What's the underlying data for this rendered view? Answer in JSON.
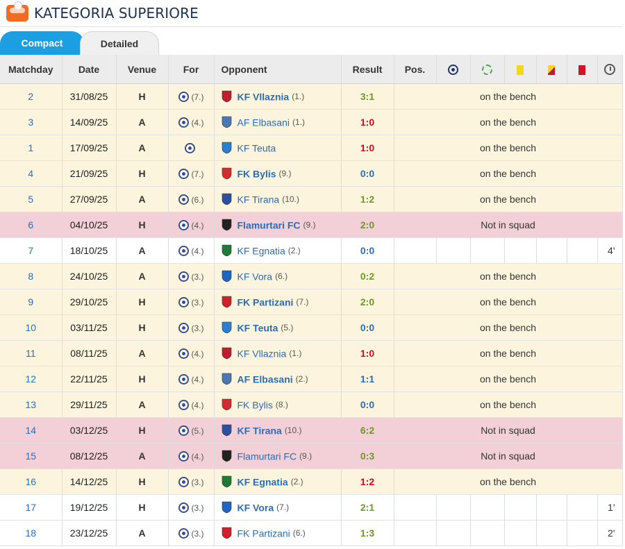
{
  "header": {
    "title": "KATEGORIA SUPERIORE"
  },
  "tabs": [
    {
      "label": "Compact"
    },
    {
      "label": "Detailed"
    }
  ],
  "columns": {
    "matchday": "Matchday",
    "date": "Date",
    "venue": "Venue",
    "for": "For",
    "opponent": "Opponent",
    "result": "Result",
    "pos": "Pos."
  },
  "colors": {
    "bench_row": "#fcf4dc",
    "absent_row": "#f3d0d7",
    "win": "#6b9a24",
    "draw": "#2a6db5",
    "loss": "#c60c1f",
    "tab_active": "#1b9ee2"
  },
  "rows": [
    {
      "matchday": "2",
      "date": "31/08/25",
      "venue": "H",
      "for_pos": "(7.)",
      "opponent": "KF Vllaznia",
      "opp_pos": "(1.)",
      "result": "3:1",
      "result_type": "win",
      "note": "on the bench",
      "state": "bench",
      "bold": true
    },
    {
      "matchday": "3",
      "date": "14/09/25",
      "venue": "A",
      "for_pos": "(4.)",
      "opponent": "AF Elbasani",
      "opp_pos": "(1.)",
      "result": "1:0",
      "result_type": "loss",
      "note": "on the bench",
      "state": "bench",
      "bold": false
    },
    {
      "matchday": "1",
      "date": "17/09/25",
      "venue": "A",
      "for_pos": "",
      "opponent": "KF Teuta",
      "opp_pos": "",
      "result": "1:0",
      "result_type": "loss",
      "note": "on the bench",
      "state": "bench",
      "bold": false
    },
    {
      "matchday": "4",
      "date": "21/09/25",
      "venue": "H",
      "for_pos": "(7.)",
      "opponent": "FK Bylis",
      "opp_pos": "(9.)",
      "result": "0:0",
      "result_type": "draw",
      "note": "on the bench",
      "state": "bench",
      "bold": true
    },
    {
      "matchday": "5",
      "date": "27/09/25",
      "venue": "A",
      "for_pos": "(6.)",
      "opponent": "KF Tirana",
      "opp_pos": "(10.)",
      "result": "1:2",
      "result_type": "win",
      "note": "on the bench",
      "state": "bench",
      "bold": false
    },
    {
      "matchday": "6",
      "date": "04/10/25",
      "venue": "H",
      "for_pos": "(4.)",
      "opponent": "Flamurtari FC",
      "opp_pos": "(9.)",
      "result": "2:0",
      "result_type": "win",
      "note": "Not in squad",
      "state": "absent",
      "bold": true
    },
    {
      "matchday": "7",
      "date": "18/10/25",
      "venue": "A",
      "for_pos": "(4.)",
      "opponent": "KF Egnatia",
      "opp_pos": "(2.)",
      "result": "0:0",
      "result_type": "draw",
      "note": "",
      "state": "played",
      "bold": false,
      "minutes": "4'"
    },
    {
      "matchday": "8",
      "date": "24/10/25",
      "venue": "A",
      "for_pos": "(3.)",
      "opponent": "KF Vora",
      "opp_pos": "(6.)",
      "result": "0:2",
      "result_type": "win",
      "note": "on the bench",
      "state": "bench",
      "bold": false
    },
    {
      "matchday": "9",
      "date": "29/10/25",
      "venue": "H",
      "for_pos": "(3.)",
      "opponent": "FK Partizani",
      "opp_pos": "(7.)",
      "result": "2:0",
      "result_type": "win",
      "note": "on the bench",
      "state": "bench",
      "bold": true
    },
    {
      "matchday": "10",
      "date": "03/11/25",
      "venue": "H",
      "for_pos": "(3.)",
      "opponent": "KF Teuta",
      "opp_pos": "(5.)",
      "result": "0:0",
      "result_type": "draw",
      "note": "on the bench",
      "state": "bench",
      "bold": true
    },
    {
      "matchday": "11",
      "date": "08/11/25",
      "venue": "A",
      "for_pos": "(4.)",
      "opponent": "KF Vllaznia",
      "opp_pos": "(1.)",
      "result": "1:0",
      "result_type": "loss",
      "note": "on the bench",
      "state": "bench",
      "bold": false
    },
    {
      "matchday": "12",
      "date": "22/11/25",
      "venue": "H",
      "for_pos": "(4.)",
      "opponent": "AF Elbasani",
      "opp_pos": "(2.)",
      "result": "1:1",
      "result_type": "draw",
      "note": "on the bench",
      "state": "bench",
      "bold": true
    },
    {
      "matchday": "13",
      "date": "29/11/25",
      "venue": "A",
      "for_pos": "(4.)",
      "opponent": "FK Bylis",
      "opp_pos": "(8.)",
      "result": "0:0",
      "result_type": "draw",
      "note": "on the bench",
      "state": "bench",
      "bold": false
    },
    {
      "matchday": "14",
      "date": "03/12/25",
      "venue": "H",
      "for_pos": "(5.)",
      "opponent": "KF Tirana",
      "opp_pos": "(10.)",
      "result": "6:2",
      "result_type": "win",
      "note": "Not in squad",
      "state": "absent",
      "bold": true
    },
    {
      "matchday": "15",
      "date": "08/12/25",
      "venue": "A",
      "for_pos": "(4.)",
      "opponent": "Flamurtari FC",
      "opp_pos": "(9.)",
      "result": "0:3",
      "result_type": "win",
      "note": "Not in squad",
      "state": "absent",
      "bold": false
    },
    {
      "matchday": "16",
      "date": "14/12/25",
      "venue": "H",
      "for_pos": "(3.)",
      "opponent": "KF Egnatia",
      "opp_pos": "(2.)",
      "result": "1:2",
      "result_type": "loss",
      "note": "on the bench",
      "state": "bench",
      "bold": true
    },
    {
      "matchday": "17",
      "date": "19/12/25",
      "venue": "H",
      "for_pos": "(3.)",
      "opponent": "KF Vora",
      "opp_pos": "(7.)",
      "result": "2:1",
      "result_type": "win",
      "note": "",
      "state": "played",
      "bold": true,
      "minutes": "1'"
    },
    {
      "matchday": "18",
      "date": "23/12/25",
      "venue": "A",
      "for_pos": "(3.)",
      "opponent": "FK Partizani",
      "opp_pos": "(6.)",
      "result": "1:3",
      "result_type": "win",
      "note": "",
      "state": "played",
      "bold": false,
      "minutes": "2'"
    }
  ],
  "icons": [
    "goal-icon",
    "assist-icon",
    "yellow-card-icon",
    "yellow-red-card-icon",
    "red-card-icon",
    "minutes-clock-icon"
  ]
}
